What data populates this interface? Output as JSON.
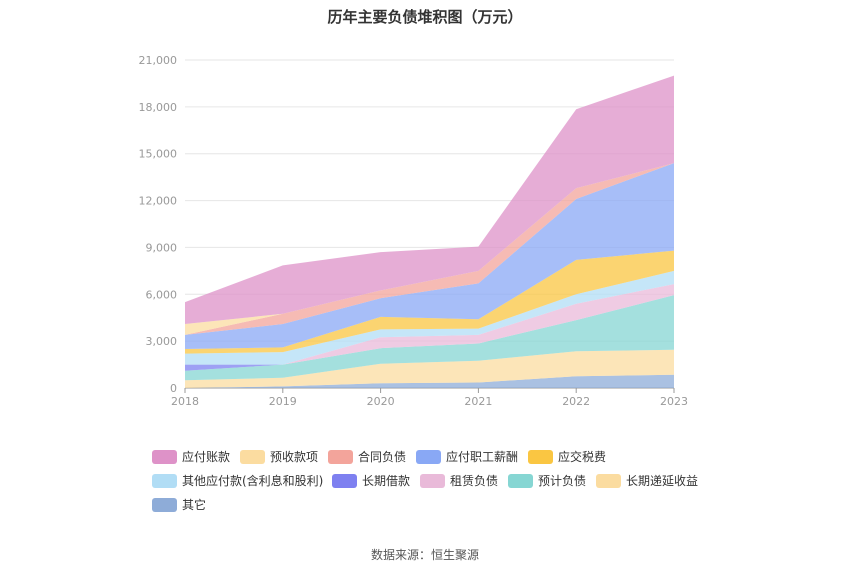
{
  "chart_data": {
    "type": "area",
    "title": "历年主要负债堆积图（万元）",
    "categories": [
      "2018",
      "2019",
      "2020",
      "2021",
      "2022",
      "2023"
    ],
    "ylim": [
      0,
      21000
    ],
    "yticks": [
      "0",
      "3,000",
      "6,000",
      "9,000",
      "12,000",
      "15,000",
      "18,000",
      "21,000"
    ],
    "stacked": true,
    "grid": true,
    "legend_position": "bottom",
    "series": [
      {
        "name": "其它",
        "color": "#8eacd8",
        "values": [
          0,
          100,
          300,
          350,
          750,
          850
        ]
      },
      {
        "name": "长期递延收益",
        "color": "#fbdca0",
        "values": [
          500,
          550,
          1250,
          1400,
          1600,
          1600
        ]
      },
      {
        "name": "预计负债",
        "color": "#86d6d3",
        "values": [
          600,
          850,
          1000,
          1100,
          2000,
          3500
        ]
      },
      {
        "name": "租赁负债",
        "color": "#e9bad9",
        "values": [
          0,
          0,
          700,
          550,
          1050,
          700
        ]
      },
      {
        "name": "长期借款",
        "color": "#7e80f0",
        "values": [
          400,
          0,
          0,
          0,
          0,
          0
        ]
      },
      {
        "name": "其他应付款(含利息和股利)",
        "color": "#b1ddf5",
        "values": [
          700,
          800,
          500,
          400,
          600,
          850
        ]
      },
      {
        "name": "应交税费",
        "color": "#fac642",
        "values": [
          300,
          300,
          800,
          600,
          2200,
          1300
        ]
      },
      {
        "name": "应付职工薪酬",
        "color": "#89a8f5",
        "values": [
          900,
          1500,
          1200,
          2300,
          3900,
          5600
        ]
      },
      {
        "name": "合同负债",
        "color": "#f3a49b",
        "values": [
          0,
          650,
          500,
          800,
          700,
          0
        ]
      },
      {
        "name": "预收款项",
        "color": "#fbdca0",
        "values": [
          700,
          0,
          0,
          0,
          0,
          0
        ]
      },
      {
        "name": "应付账款",
        "color": "#de92c8",
        "values": [
          1400,
          3100,
          2450,
          1550,
          5050,
          5600
        ]
      }
    ]
  },
  "legend": [
    {
      "label": "应付账款",
      "color": "#de92c8"
    },
    {
      "label": "预收款项",
      "color": "#fbdca0"
    },
    {
      "label": "合同负债",
      "color": "#f3a49b"
    },
    {
      "label": "应付职工薪酬",
      "color": "#89a8f5"
    },
    {
      "label": "应交税费",
      "color": "#fac642"
    },
    {
      "label": "其他应付款(含利息和股利)",
      "color": "#b1ddf5"
    },
    {
      "label": "长期借款",
      "color": "#7e80f0"
    },
    {
      "label": "租赁负债",
      "color": "#e9bad9"
    },
    {
      "label": "预计负债",
      "color": "#86d6d3"
    },
    {
      "label": "长期递延收益",
      "color": "#fbdca0"
    },
    {
      "label": "其它",
      "color": "#8eacd8"
    }
  ],
  "source": "数据来源：恒生聚源"
}
